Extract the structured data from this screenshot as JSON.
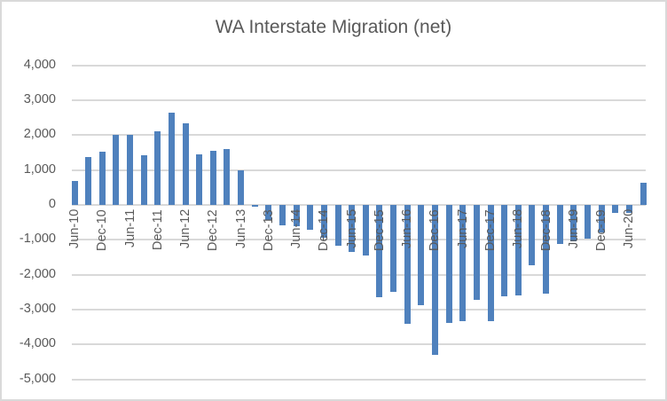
{
  "chart_data": {
    "type": "bar",
    "title": "WA Interstate Migration (net)",
    "xlabel": "",
    "ylabel": "",
    "ylim": [
      -5000,
      4000
    ],
    "yticks": [
      4000,
      3000,
      2000,
      1000,
      0,
      -1000,
      -2000,
      -3000,
      -4000,
      -5000
    ],
    "ytick_labels": [
      "4,000",
      "3,000",
      "2,000",
      "1,000",
      "0",
      "-1,000",
      "-2,000",
      "-3,000",
      "-4,000",
      "-5,000"
    ],
    "grid": true,
    "legend": null,
    "series_color": "#4f81bd",
    "categories": [
      "Jun-10",
      "Sep-10",
      "Dec-10",
      "Mar-11",
      "Jun-11",
      "Sep-11",
      "Dec-11",
      "Mar-12",
      "Jun-12",
      "Sep-12",
      "Dec-12",
      "Mar-13",
      "Jun-13",
      "Sep-13",
      "Dec-13",
      "Mar-14",
      "Jun-14",
      "Sep-14",
      "Dec-14",
      "Mar-15",
      "Jun-15",
      "Sep-15",
      "Dec-15",
      "Mar-16",
      "Jun-16",
      "Sep-16",
      "Dec-16",
      "Mar-17",
      "Jun-17",
      "Sep-17",
      "Dec-17",
      "Mar-18",
      "Jun-18",
      "Sep-18",
      "Dec-18",
      "Mar-19",
      "Jun-19",
      "Sep-19",
      "Dec-19",
      "Mar-20",
      "Jun-20",
      "Sep-20"
    ],
    "x_tick_labels": [
      "Jun-10",
      "Dec-10",
      "Jun-11",
      "Dec-11",
      "Jun-12",
      "Dec-12",
      "Jun-13",
      "Dec-13",
      "Jun-14",
      "Dec-14",
      "Jun-15",
      "Dec-15",
      "Jun-16",
      "Dec-16",
      "Jun-17",
      "Dec-17",
      "Jun-18",
      "Dec-18",
      "Jun-19",
      "Dec-19",
      "Jun-20"
    ],
    "values": [
      680,
      1380,
      1530,
      2020,
      2020,
      1430,
      2120,
      2650,
      2350,
      1460,
      1560,
      1590,
      990,
      -50,
      -420,
      -580,
      -620,
      -710,
      -950,
      -1180,
      -1350,
      -1450,
      -2650,
      -2500,
      -3410,
      -2880,
      -4300,
      -3380,
      -3340,
      -2720,
      -3340,
      -2620,
      -2600,
      -1740,
      -2550,
      -1130,
      -1050,
      -960,
      -800,
      -230,
      -220,
      640
    ]
  }
}
